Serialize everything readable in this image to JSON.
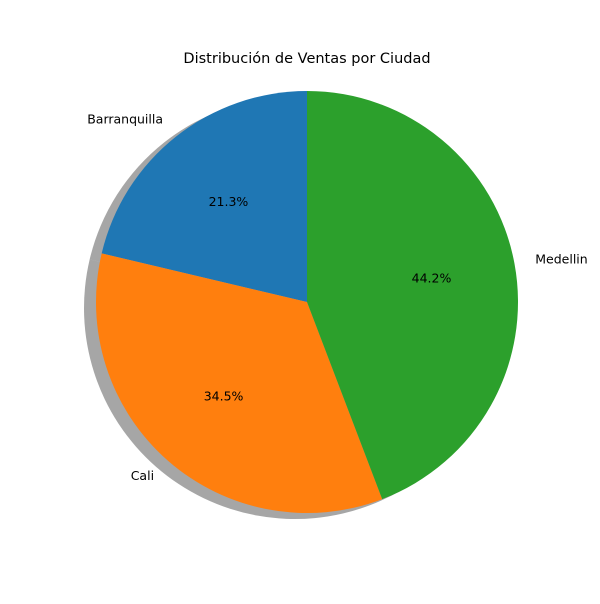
{
  "chart_data": {
    "type": "pie",
    "title": "Distribución de Ventas por Ciudad",
    "labels": [
      "Barranquilla",
      "Cali",
      "Medellin"
    ],
    "values": [
      21.3,
      34.5,
      44.2
    ],
    "percent_labels": [
      "21.3%",
      "34.5%",
      "44.2%"
    ],
    "colors": [
      "#1f77b4",
      "#ff7f0e",
      "#2ca02c"
    ],
    "start_angle": 90,
    "direction": "counterclockwise",
    "shadow": true,
    "legend": "none"
  }
}
